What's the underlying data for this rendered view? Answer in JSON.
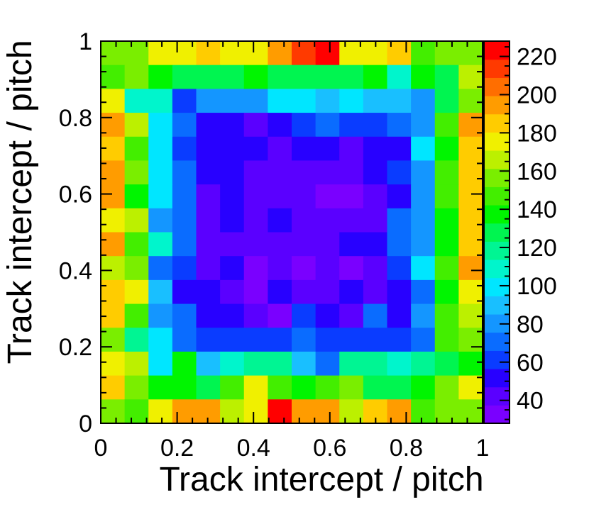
{
  "chart_data": {
    "type": "heatmap",
    "title": "",
    "xlabel": "Track intercept / pitch",
    "ylabel": "Track intercept / pitch",
    "xlim": [
      0,
      1
    ],
    "ylim": [
      0,
      1
    ],
    "x_ticks": [
      "0",
      "0.2",
      "0.4",
      "0.6",
      "0.8",
      "1"
    ],
    "y_ticks": [
      "0",
      "0.2",
      "0.4",
      "0.6",
      "0.8",
      "1"
    ],
    "colorbar": {
      "range": [
        28,
        228
      ],
      "ticks": [
        "40",
        "60",
        "80",
        "100",
        "120",
        "140",
        "160",
        "180",
        "200",
        "220"
      ]
    },
    "grid": false,
    "bins": {
      "nx": 16,
      "ny": 16
    },
    "values_rows_top_to_bottom": [
      [
        155,
        158,
        175,
        175,
        185,
        175,
        175,
        195,
        210,
        220,
        175,
        175,
        185,
        150,
        155,
        155
      ],
      [
        150,
        160,
        135,
        130,
        130,
        130,
        140,
        125,
        125,
        125,
        130,
        135,
        110,
        140,
        130,
        165
      ],
      [
        175,
        110,
        110,
        65,
        80,
        80,
        85,
        95,
        100,
        90,
        95,
        90,
        90,
        85,
        125,
        160
      ],
      [
        195,
        170,
        95,
        70,
        55,
        55,
        45,
        55,
        60,
        70,
        60,
        60,
        75,
        80,
        145,
        195
      ],
      [
        185,
        150,
        95,
        65,
        50,
        50,
        50,
        40,
        55,
        55,
        40,
        55,
        55,
        100,
        135,
        185
      ],
      [
        195,
        155,
        95,
        70,
        50,
        50,
        45,
        45,
        45,
        45,
        45,
        50,
        65,
        85,
        145,
        185
      ],
      [
        195,
        135,
        100,
        70,
        45,
        50,
        45,
        45,
        45,
        35,
        35,
        40,
        55,
        80,
        150,
        185
      ],
      [
        175,
        165,
        85,
        70,
        45,
        50,
        45,
        50,
        45,
        45,
        45,
        45,
        75,
        80,
        140,
        185
      ],
      [
        195,
        150,
        110,
        70,
        45,
        45,
        40,
        45,
        45,
        45,
        50,
        50,
        75,
        85,
        140,
        185
      ],
      [
        165,
        155,
        75,
        60,
        45,
        50,
        35,
        45,
        35,
        45,
        35,
        45,
        60,
        100,
        145,
        195
      ],
      [
        185,
        175,
        90,
        55,
        50,
        45,
        35,
        50,
        45,
        45,
        50,
        45,
        55,
        70,
        140,
        175
      ],
      [
        185,
        145,
        80,
        75,
        55,
        50,
        45,
        35,
        60,
        55,
        45,
        70,
        55,
        85,
        145,
        165
      ],
      [
        155,
        120,
        100,
        75,
        60,
        60,
        60,
        60,
        75,
        65,
        65,
        65,
        65,
        75,
        145,
        155
      ],
      [
        175,
        165,
        100,
        135,
        90,
        110,
        120,
        115,
        90,
        75,
        120,
        115,
        110,
        115,
        125,
        135
      ],
      [
        185,
        160,
        135,
        140,
        130,
        150,
        175,
        150,
        140,
        150,
        155,
        130,
        130,
        140,
        155,
        175
      ],
      [
        155,
        150,
        180,
        190,
        190,
        170,
        175,
        220,
        190,
        190,
        170,
        185,
        190,
        150,
        160,
        155
      ]
    ]
  },
  "colors": {
    "palette": [
      "#7a00ff",
      "#5a00ff",
      "#2800ff",
      "#0a3cff",
      "#0a6cff",
      "#1496ff",
      "#19bfff",
      "#00e6ff",
      "#00f5cc",
      "#00f593",
      "#00f550",
      "#00f500",
      "#43ee00",
      "#7aee00",
      "#bcf000",
      "#f0f000",
      "#ffcc00",
      "#ff9c00",
      "#ff6e00",
      "#ff3a00",
      "#ff0000"
    ]
  }
}
